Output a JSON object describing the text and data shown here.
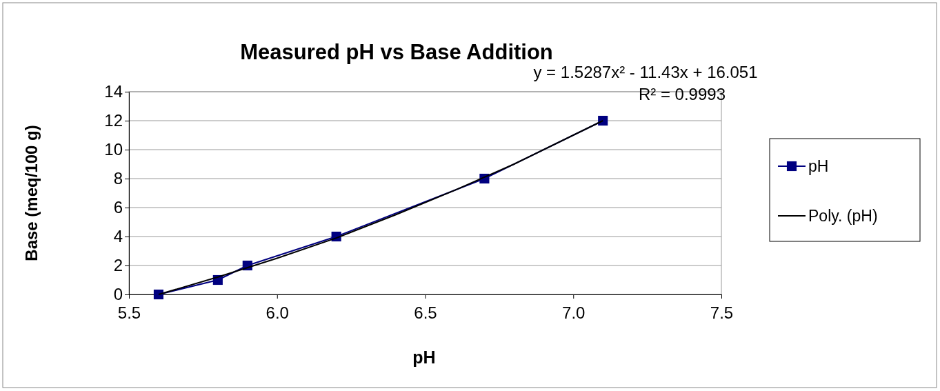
{
  "chart_data": {
    "type": "line",
    "title": "Measured pH vs Base Addition",
    "xlabel": "pH",
    "ylabel": "Base (meq/100 g)",
    "annotations": [
      "y = 1.5287x² - 11.43x + 16.051",
      "R² = 0.9993"
    ],
    "xlim": [
      5.5,
      7.5
    ],
    "xticks": [
      5.5,
      {
        "value": 6,
        "label": "6.0"
      },
      6.5,
      {
        "value": 7,
        "label": "7.0"
      },
      7.5
    ],
    "ylim": [
      0,
      14
    ],
    "yticks": [
      0,
      2,
      4,
      6,
      8,
      10,
      12,
      14
    ],
    "grid": "y",
    "legend": "right",
    "series": [
      {
        "name": "pH",
        "marker": "square",
        "color": "#000080",
        "x": [
          5.6,
          5.8,
          5.9,
          6.2,
          6.7,
          7.1
        ],
        "values": [
          0,
          1,
          2,
          4,
          8,
          12
        ]
      },
      {
        "name": "Poly. (pH)",
        "marker": "none",
        "color": "#000000",
        "x": [
          5.6,
          5.8,
          6.0,
          6.2,
          6.4,
          6.6,
          6.8,
          7.1
        ],
        "values": [
          0,
          1.2,
          2.5,
          3.9,
          5.5,
          7.2,
          9.0,
          12.0
        ]
      }
    ]
  }
}
